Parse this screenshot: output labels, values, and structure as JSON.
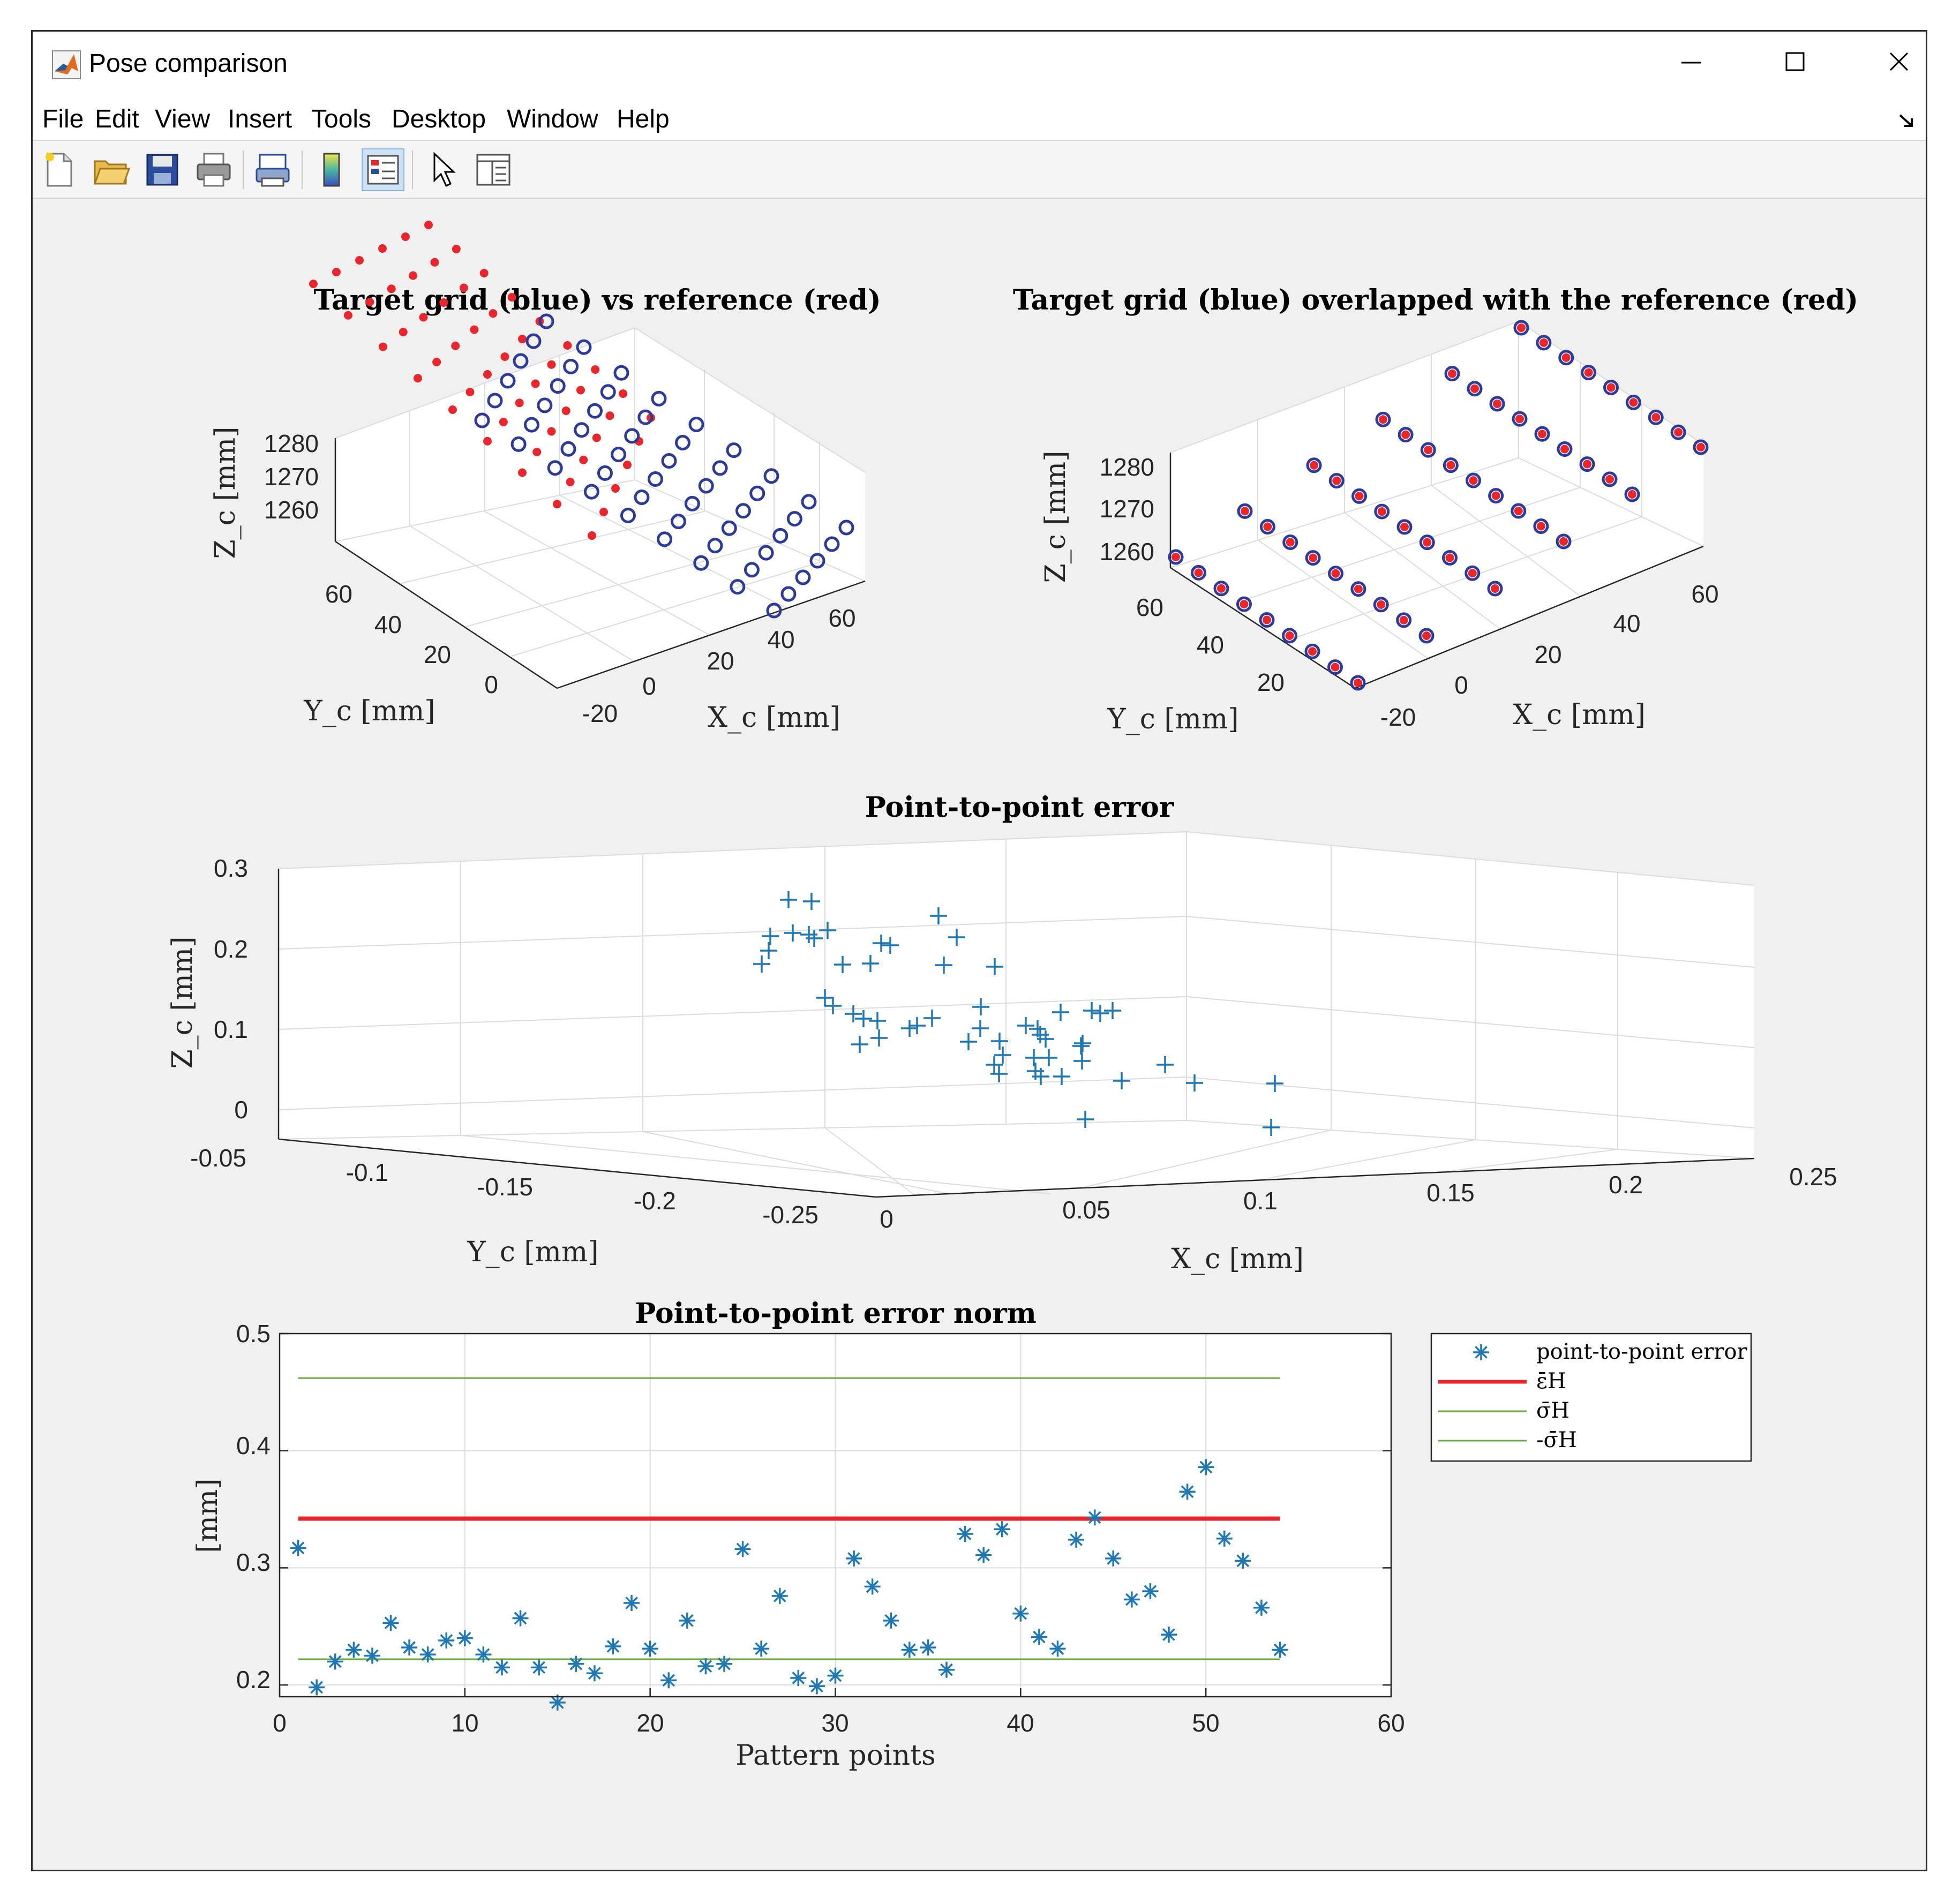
{
  "window": {
    "title": "Pose comparison",
    "menu": [
      "File",
      "Edit",
      "View",
      "Insert",
      "Tools",
      "Desktop",
      "Window",
      "Help"
    ],
    "toolbar": [
      "new-figure-icon",
      "open-file-icon",
      "save-icon",
      "print-icon",
      "link-plot-icon",
      "colorbar-icon",
      "legend-icon",
      "edit-plot-arrow-icon",
      "property-inspector-icon"
    ],
    "controls": [
      "minimize-icon",
      "maximize-icon",
      "close-icon"
    ]
  },
  "chart_data": [
    {
      "type": "scatter3d",
      "title": "Target grid (blue) vs reference (red)",
      "xlabel": "X_c [mm]",
      "ylabel": "Y_c [mm]",
      "zlabel": "Z_c [mm]",
      "xticks": [
        "-20",
        "0",
        "20",
        "40",
        "60"
      ],
      "yticks": [
        "0",
        "20",
        "40",
        "60"
      ],
      "zticks": [
        "1260",
        "1270",
        "1280"
      ],
      "series": [
        {
          "marker": "circle",
          "color": "#2d3a9a",
          "grid": {
            "x": [
              -20,
              60
            ],
            "y": [
              0,
              60
            ],
            "rows": 9,
            "cols": 6
          }
        },
        {
          "marker": "dot",
          "color": "#e8262c",
          "grid": {
            "x": [
              -20,
              60
            ],
            "y": [
              0,
              60
            ],
            "rows": 9,
            "cols": 6
          }
        }
      ]
    },
    {
      "type": "scatter3d",
      "title": "Target grid (blue) overlapped with the reference (red)",
      "xlabel": "X_c [mm]",
      "ylabel": "Y_c [mm]",
      "zlabel": "Z_c [mm]",
      "xticks": [
        "-20",
        "0",
        "20",
        "40",
        "60"
      ],
      "yticks": [
        "20",
        "40",
        "60"
      ],
      "zticks": [
        "1260",
        "1270",
        "1280"
      ],
      "series": [
        {
          "marker": "circle",
          "color": "#2d3a9a"
        },
        {
          "marker": "dot",
          "color": "#e8262c"
        }
      ]
    },
    {
      "type": "scatter3d",
      "title": "Point-to-point error",
      "xlabel": "X_c [mm]",
      "ylabel": "Y_c [mm]",
      "zlabel": "Z_c [mm]",
      "xticks": [
        "0",
        "0.05",
        "0.1",
        "0.15",
        "0.2",
        "0.25"
      ],
      "yticks": [
        "-0.05",
        "-0.1",
        "-0.15",
        "-0.2",
        "-0.25"
      ],
      "zticks": [
        "0",
        "0.1",
        "0.2",
        "0.3"
      ],
      "marker": "plus",
      "color": "#1f77b4"
    },
    {
      "type": "scatter",
      "title": "Point-to-point error norm",
      "xlabel": "Pattern points",
      "ylabel": "[mm]",
      "xlim": [
        0,
        60
      ],
      "ylim": [
        0.19,
        0.5
      ],
      "xticks": [
        "0",
        "10",
        "20",
        "30",
        "40",
        "50",
        "60"
      ],
      "yticks": [
        "0.2",
        "0.3",
        "0.4",
        "0.5"
      ],
      "grid": true,
      "legend_position": "outside-right",
      "x": [
        1,
        2,
        3,
        4,
        5,
        6,
        7,
        8,
        9,
        10,
        11,
        12,
        13,
        14,
        15,
        16,
        17,
        18,
        19,
        20,
        21,
        22,
        23,
        24,
        25,
        26,
        27,
        28,
        29,
        30,
        31,
        32,
        33,
        34,
        35,
        36,
        37,
        38,
        39,
        40,
        41,
        42,
        43,
        44,
        45,
        46,
        47,
        48,
        49,
        50,
        51,
        52,
        53,
        54
      ],
      "values": [
        0.317,
        0.198,
        0.22,
        0.23,
        0.225,
        0.253,
        0.232,
        0.226,
        0.238,
        0.24,
        0.226,
        0.215,
        0.257,
        0.215,
        0.185,
        0.218,
        0.21,
        0.233,
        0.27,
        0.231,
        0.204,
        0.255,
        0.216,
        0.218,
        0.316,
        0.231,
        0.276,
        0.206,
        0.199,
        0.208,
        0.308,
        0.284,
        0.255,
        0.23,
        0.232,
        0.213,
        0.329,
        0.311,
        0.333,
        0.261,
        0.241,
        0.231,
        0.324,
        0.343,
        0.308,
        0.273,
        0.28,
        0.243,
        0.365,
        0.386,
        0.325,
        0.306,
        0.266,
        0.23
      ],
      "series": [
        {
          "name": "point-to-point error",
          "marker": "asterisk",
          "color": "#1f77b4"
        },
        {
          "name": "ε̄H",
          "value": 0.342,
          "x": [
            1,
            54
          ],
          "color": "#e8262c"
        },
        {
          "name": "σ̄H",
          "value": 0.462,
          "x": [
            1,
            54
          ],
          "color": "#6aaa3a"
        },
        {
          "name": "-σ̄H",
          "value": 0.222,
          "x": [
            1,
            54
          ],
          "color": "#6aaa3a"
        }
      ]
    }
  ]
}
